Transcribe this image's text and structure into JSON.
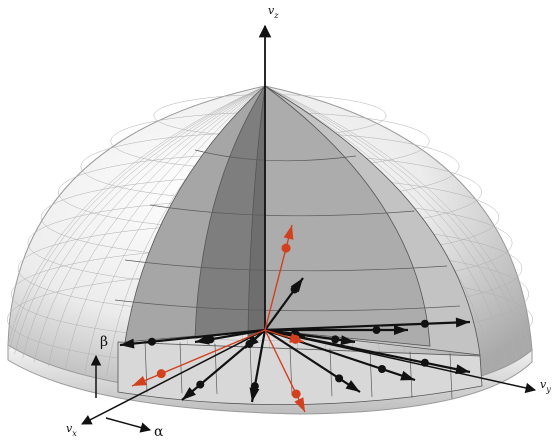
{
  "labels": {
    "vz": {
      "base": "v",
      "sub": "z"
    },
    "vy": {
      "base": "v",
      "sub": "y"
    },
    "vx": {
      "base": "v",
      "sub": "x"
    },
    "alpha": "α",
    "beta": "β"
  },
  "colors": {
    "background": "#ffffff",
    "hemisphere_light": "#f2f2f2",
    "hemisphere_shade": "#b5b5b5",
    "sector_dark": "#7c7c7c",
    "sector_mid": "#a0a0a0",
    "sector_light": "#c4c4c4",
    "grid_line": "#6a6a6a",
    "vector_black": "#111111",
    "vector_red": "#d2401e",
    "axis": "#111111"
  },
  "icons": [
    "hemisphere-surface",
    "highlighted-sector",
    "velocity-vector-arrow",
    "coordinate-axis-arrow"
  ]
}
